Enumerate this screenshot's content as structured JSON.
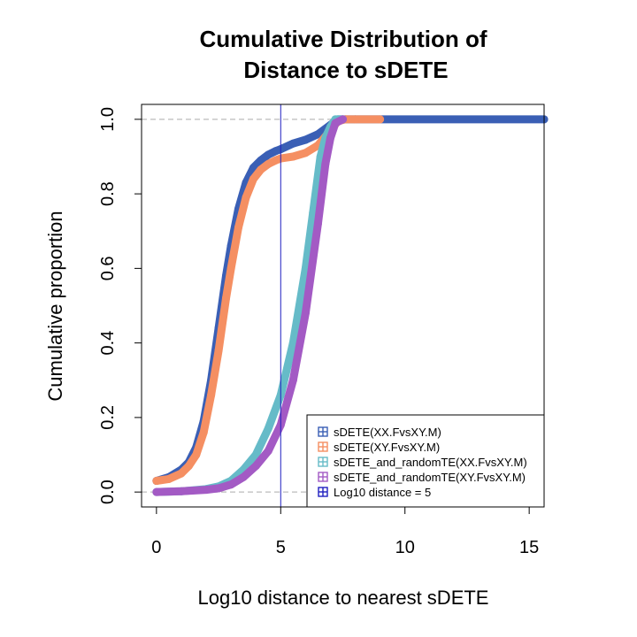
{
  "chart_data": {
    "type": "line",
    "title_lines": [
      "Cumulative Distribution of",
      "Distance to sDETE"
    ],
    "xlabel": "Log10 distance to nearest sDETE",
    "ylabel": "Cumulative proportion",
    "xlim": [
      -0.6,
      15.6
    ],
    "ylim": [
      -0.04,
      1.04
    ],
    "xticks": [
      0,
      5,
      10,
      15
    ],
    "yticks": [
      0.0,
      0.2,
      0.4,
      0.6,
      0.8,
      1.0
    ],
    "ytick_labels": [
      "0.0",
      "0.2",
      "0.4",
      "0.6",
      "0.8",
      "1.0"
    ],
    "hlines": [
      0,
      1
    ],
    "vline": {
      "x": 5,
      "color": "#2020c0"
    },
    "legend_position": "bottom-right",
    "series": [
      {
        "name": "sDETE(XX.FvsXY.M)",
        "color": "#3a5fb5",
        "x": [
          0,
          0.5,
          1.0,
          1.3,
          1.6,
          1.9,
          2.2,
          2.5,
          2.8,
          3.0,
          3.3,
          3.6,
          3.9,
          4.2,
          4.5,
          4.8,
          5.0,
          5.5,
          6.0,
          6.5,
          7.0,
          7.3,
          7.6,
          8,
          15.6
        ],
        "y": [
          0.03,
          0.04,
          0.06,
          0.08,
          0.12,
          0.19,
          0.3,
          0.44,
          0.58,
          0.66,
          0.76,
          0.83,
          0.87,
          0.89,
          0.905,
          0.915,
          0.92,
          0.935,
          0.945,
          0.96,
          0.985,
          1.0,
          1.0,
          1.0,
          1.0
        ]
      },
      {
        "name": "sDETE(XY.FvsXY.M)",
        "color": "#f58f62",
        "x": [
          0,
          0.5,
          1.0,
          1.3,
          1.6,
          1.9,
          2.2,
          2.5,
          2.8,
          3.0,
          3.3,
          3.6,
          3.9,
          4.2,
          4.5,
          4.8,
          5.0,
          5.5,
          6.0,
          6.5,
          7.0,
          7.3,
          7.6,
          8,
          9.0
        ],
        "y": [
          0.03,
          0.035,
          0.05,
          0.07,
          0.1,
          0.16,
          0.26,
          0.38,
          0.52,
          0.6,
          0.71,
          0.79,
          0.84,
          0.865,
          0.88,
          0.89,
          0.895,
          0.9,
          0.91,
          0.93,
          0.97,
          0.995,
          1.0,
          1.0,
          1.0
        ]
      },
      {
        "name": "sDETE_and_randomTE(XX.FvsXY.M)",
        "color": "#66bbc8",
        "x": [
          0,
          1.0,
          2.0,
          2.5,
          3.0,
          3.5,
          4.0,
          4.5,
          5.0,
          5.5,
          6.0,
          6.3,
          6.6,
          6.8,
          7.0,
          7.2,
          7.5
        ],
        "y": [
          0.0,
          0.002,
          0.008,
          0.015,
          0.03,
          0.06,
          0.1,
          0.17,
          0.26,
          0.4,
          0.6,
          0.75,
          0.9,
          0.95,
          0.98,
          1.0,
          1.0
        ]
      },
      {
        "name": "sDETE_and_randomTE(XY.FvsXY.M)",
        "color": "#a35ac4",
        "x": [
          0,
          1.0,
          2.0,
          2.5,
          3.0,
          3.5,
          4.0,
          4.5,
          5.0,
          5.5,
          6.0,
          6.5,
          6.8,
          7.0,
          7.2,
          7.5
        ],
        "y": [
          0.0,
          0.002,
          0.006,
          0.01,
          0.02,
          0.04,
          0.07,
          0.11,
          0.18,
          0.3,
          0.48,
          0.72,
          0.88,
          0.95,
          0.99,
          1.0
        ]
      }
    ],
    "legend": [
      {
        "label": "sDETE(XX.FvsXY.M)",
        "color": "#3a5fb5"
      },
      {
        "label": "sDETE(XY.FvsXY.M)",
        "color": "#f58f62"
      },
      {
        "label": "sDETE_and_randomTE(XX.FvsXY.M)",
        "color": "#66bbc8"
      },
      {
        "label": "sDETE_and_randomTE(XY.FvsXY.M)",
        "color": "#a35ac4"
      },
      {
        "label": "Log10 distance = 5",
        "color": "#2020c0"
      }
    ]
  }
}
